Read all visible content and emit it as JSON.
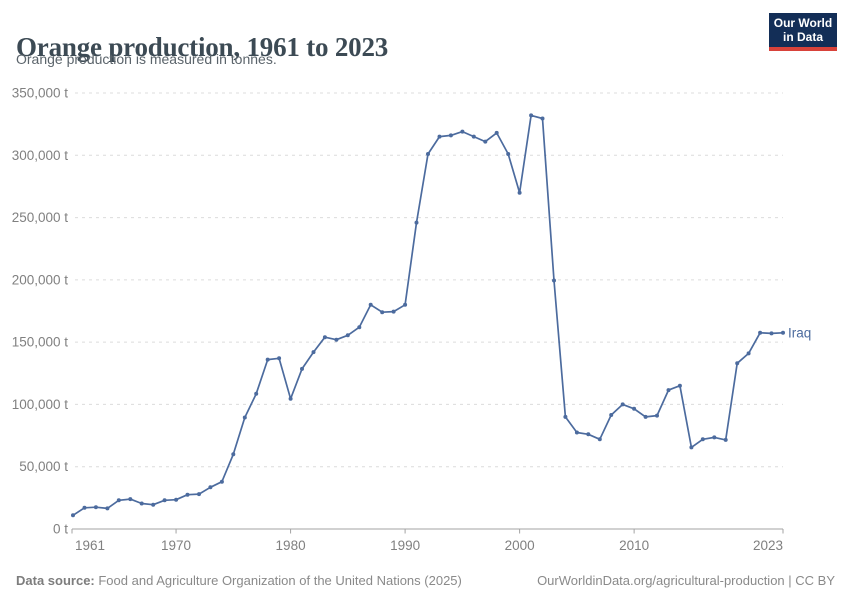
{
  "header": {
    "title": "Orange production, 1961 to 2023",
    "subtitle": "Orange production is measured in tonnes."
  },
  "logo": {
    "line1": "Our World",
    "line2": "in Data"
  },
  "footer": {
    "source_label": "Data source:",
    "source_text": " Food and Agriculture Organization of the United Nations (2025)",
    "right_text": "OurWorldinData.org/agricultural-production | CC BY"
  },
  "chart_data": {
    "type": "line",
    "title": "Orange production, 1961 to 2023",
    "subtitle": "Orange production is measured in tonnes.",
    "entity_label": "Iraq",
    "unit": "t",
    "xlabel": "",
    "ylabel": "",
    "xlim": [
      1961,
      2023
    ],
    "ylim": [
      0,
      350000
    ],
    "grid": "horizontal-dashed",
    "legend_position": "end-of-line-label",
    "xticks": [
      1961,
      1970,
      1980,
      1990,
      2000,
      2010,
      2023
    ],
    "yticks": [
      0,
      50000,
      100000,
      150000,
      200000,
      250000,
      300000,
      350000
    ],
    "ytick_labels": [
      "0 t",
      "50,000 t",
      "100,000 t",
      "150,000 t",
      "200,000 t",
      "250,000 t",
      "300,000 t",
      "350,000 t"
    ],
    "colors": {
      "line": "#4C6B9E",
      "grid": "#DCDCDC",
      "axis": "#A3A3A3",
      "tick_text": "#808080",
      "logo_bg": "#132E57",
      "logo_accent": "#D8423A"
    },
    "series": [
      {
        "name": "Iraq",
        "color": "#4C6B9E",
        "x": [
          1961,
          1962,
          1963,
          1964,
          1965,
          1966,
          1967,
          1968,
          1969,
          1970,
          1971,
          1972,
          1973,
          1974,
          1975,
          1976,
          1977,
          1978,
          1979,
          1980,
          1981,
          1982,
          1983,
          1984,
          1985,
          1986,
          1987,
          1988,
          1989,
          1990,
          1991,
          1992,
          1993,
          1994,
          1995,
          1996,
          1997,
          1998,
          1999,
          2000,
          2001,
          2002,
          2003,
          2004,
          2005,
          2006,
          2007,
          2008,
          2009,
          2010,
          2011,
          2012,
          2013,
          2014,
          2015,
          2016,
          2017,
          2018,
          2019,
          2020,
          2021,
          2022,
          2023
        ],
        "values": [
          11000,
          17000,
          17500,
          16500,
          23000,
          24000,
          20500,
          19500,
          23000,
          23500,
          27500,
          28000,
          33500,
          38000,
          60000,
          89500,
          108500,
          136000,
          137000,
          104500,
          128500,
          142000,
          154000,
          152000,
          155500,
          162000,
          180000,
          174000,
          174500,
          180000,
          246000,
          301000,
          315000,
          316000,
          319000,
          315000,
          311000,
          318000,
          301000,
          270000,
          332000,
          329500,
          199500,
          90000,
          77500,
          76000,
          72000,
          91500,
          100000,
          96500,
          90000,
          91000,
          111500,
          115000,
          65500,
          72000,
          73500,
          71500,
          133000,
          141000,
          157500,
          157000,
          157500
        ]
      }
    ]
  }
}
